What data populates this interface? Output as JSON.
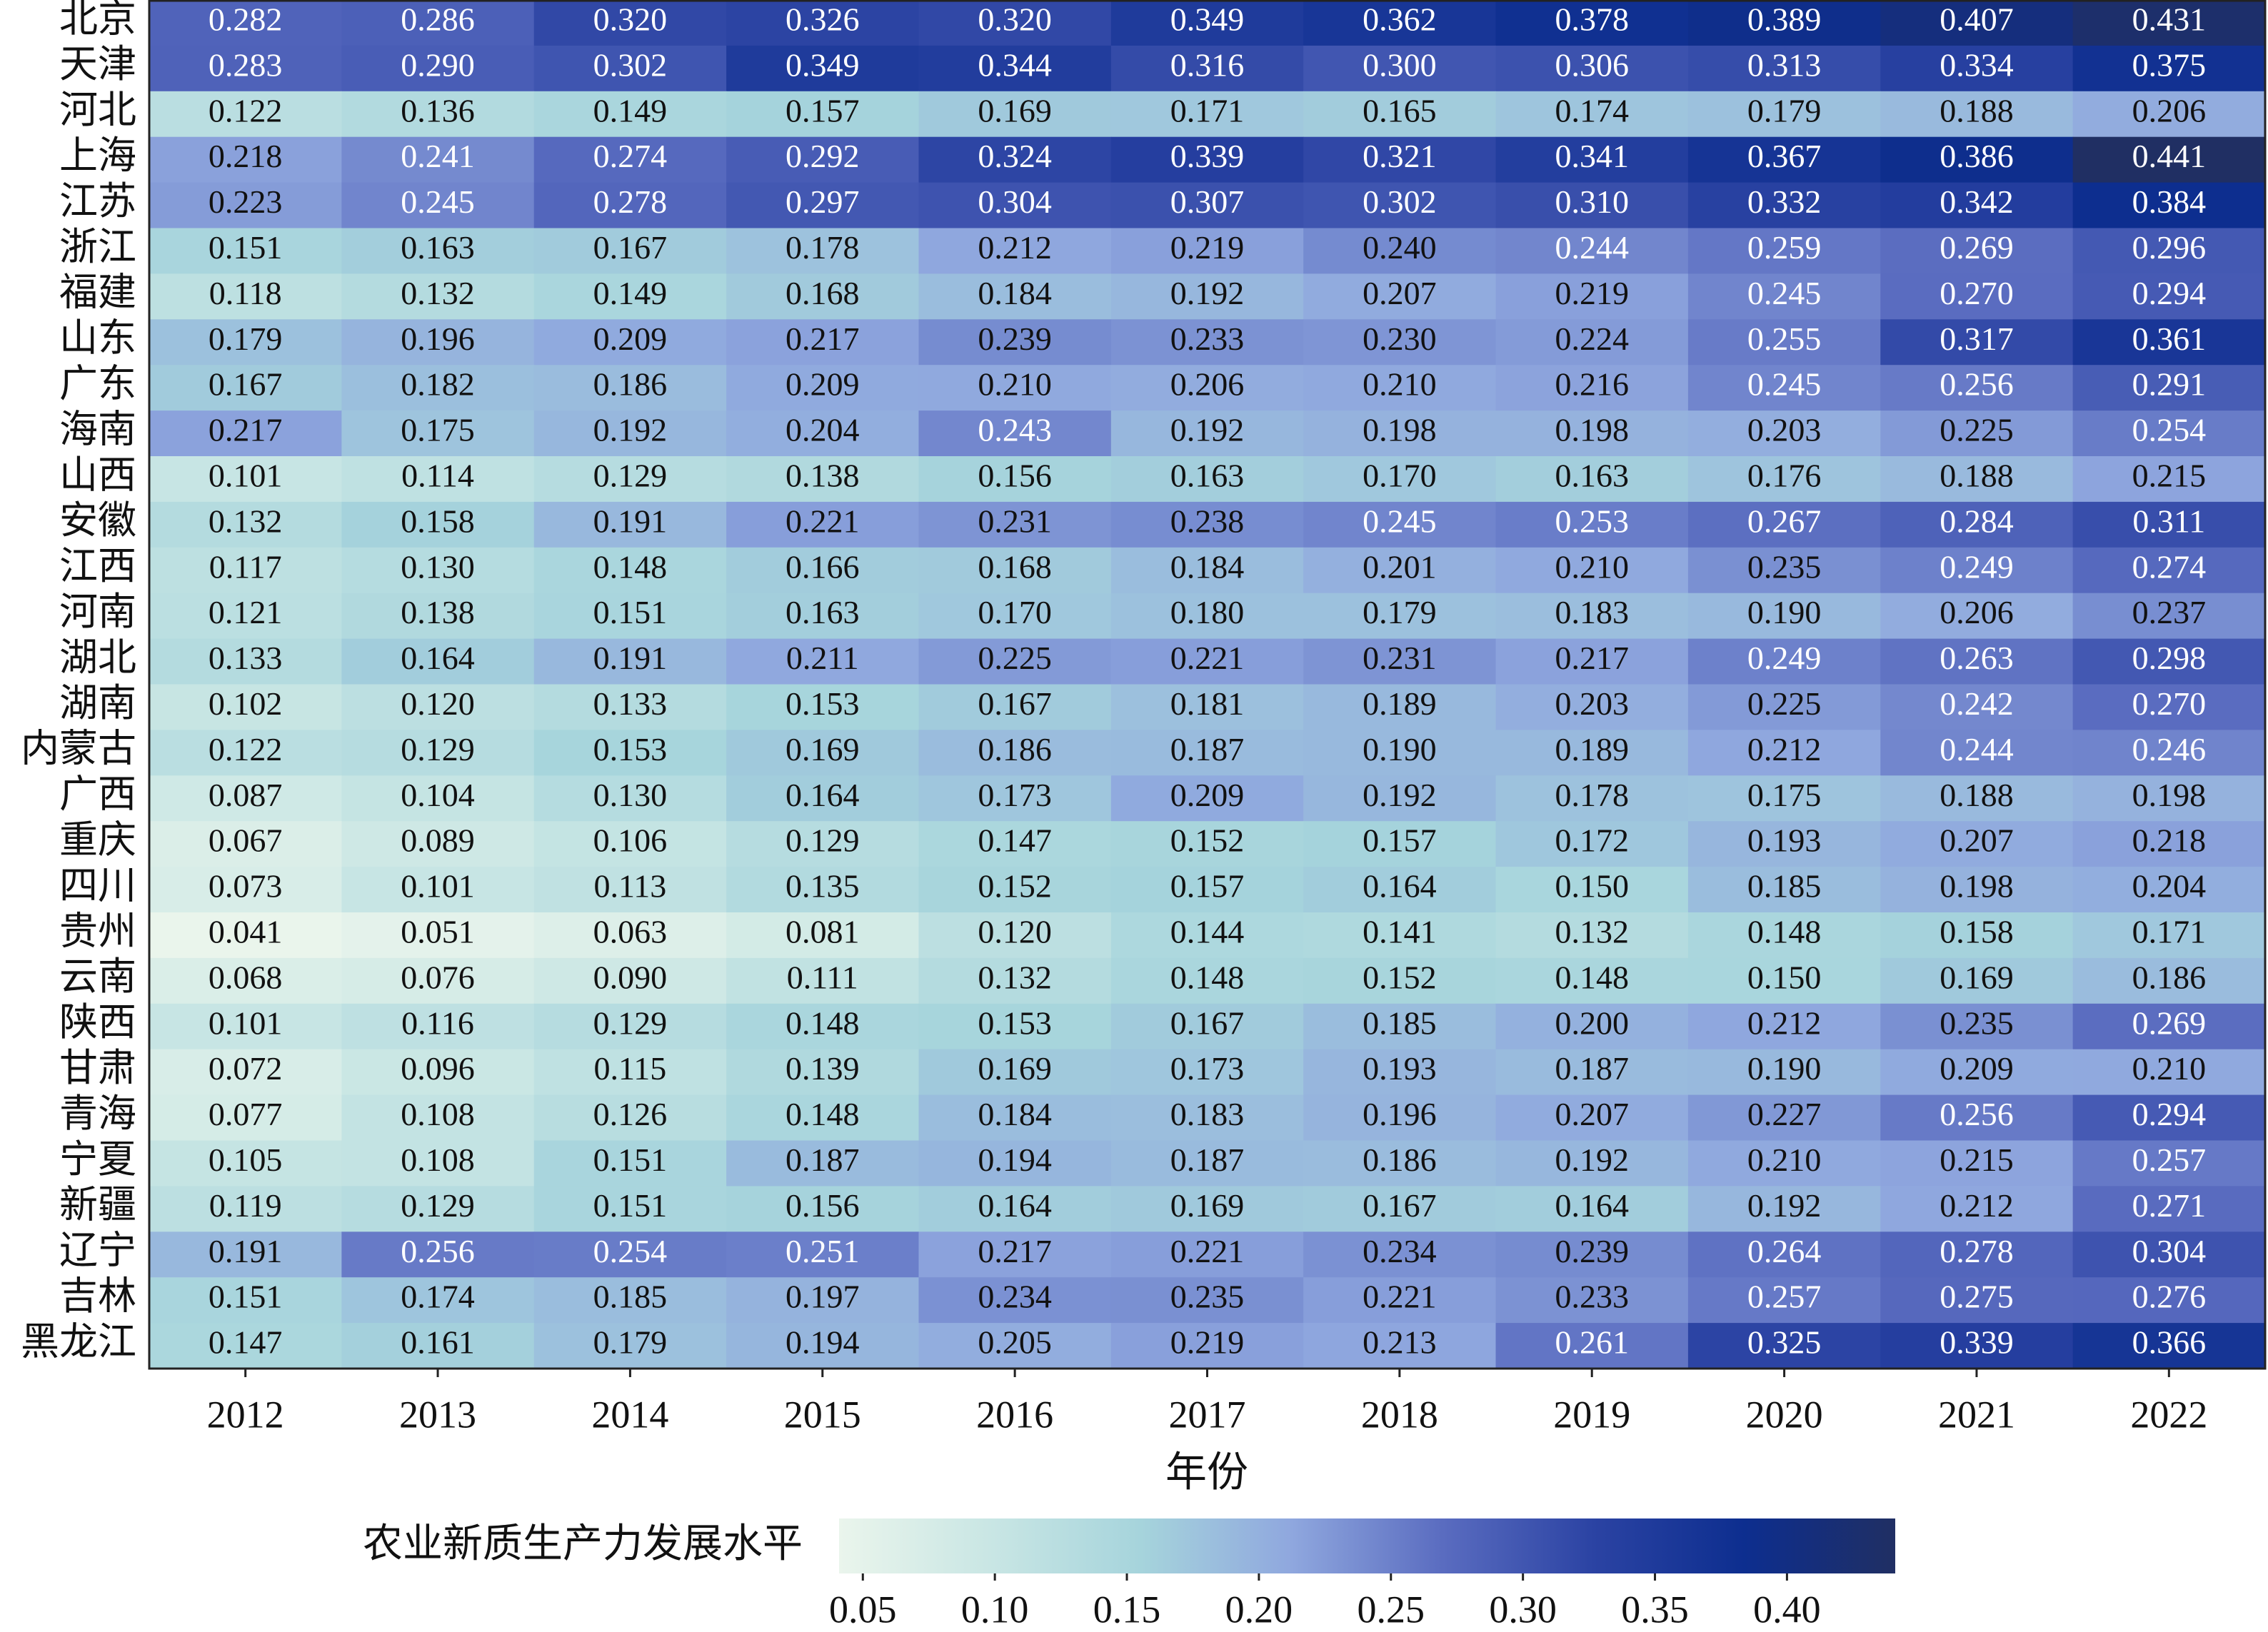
{
  "chart_data": {
    "type": "heatmap",
    "x_label": "年份",
    "colorbar_label": "农业新质生产力发展水平",
    "categories": [
      "2012",
      "2013",
      "2014",
      "2015",
      "2016",
      "2017",
      "2018",
      "2019",
      "2020",
      "2021",
      "2022"
    ],
    "colormap": [
      "#eaf5ec",
      "#c9e6e4",
      "#a6d4dc",
      "#8fa7de",
      "#5a6cc0",
      "#2b43a3",
      "#0d2e8f",
      "#202f63"
    ],
    "clim": [
      0.041,
      0.441
    ],
    "cticks": [
      0.05,
      0.1,
      0.15,
      0.2,
      0.25,
      0.3,
      0.35,
      0.4
    ],
    "cticks_labels": [
      "0.05",
      "0.10",
      "0.15",
      "0.20",
      "0.25",
      "0.30",
      "0.35",
      "0.40"
    ],
    "series": [
      {
        "name": "北京",
        "values": [
          0.282,
          0.286,
          0.32,
          0.326,
          0.32,
          0.349,
          0.362,
          0.378,
          0.389,
          0.407,
          0.431
        ],
        "value_labels": [
          "0.282",
          "0.286",
          "0.320",
          "0.326",
          "0.320",
          "0.349",
          "0.362",
          "0.378",
          "0.389",
          "0.407",
          "0.431"
        ]
      },
      {
        "name": "天津",
        "values": [
          0.283,
          0.29,
          0.302,
          0.349,
          0.344,
          0.316,
          0.3,
          0.306,
          0.313,
          0.334,
          0.375
        ],
        "value_labels": [
          "0.283",
          "0.290",
          "0.302",
          "0.349",
          "0.344",
          "0.316",
          "0.300",
          "0.306",
          "0.313",
          "0.334",
          "0.375"
        ]
      },
      {
        "name": "河北",
        "values": [
          0.122,
          0.136,
          0.149,
          0.157,
          0.169,
          0.171,
          0.165,
          0.174,
          0.179,
          0.188,
          0.206
        ],
        "value_labels": [
          "0.122",
          "0.136",
          "0.149",
          "0.157",
          "0.169",
          "0.171",
          "0.165",
          "0.174",
          "0.179",
          "0.188",
          "0.206"
        ]
      },
      {
        "name": "上海",
        "values": [
          0.218,
          0.241,
          0.274,
          0.292,
          0.324,
          0.339,
          0.321,
          0.341,
          0.367,
          0.386,
          0.441
        ],
        "value_labels": [
          "0.218",
          "0.241",
          "0.274",
          "0.292",
          "0.324",
          "0.339",
          "0.321",
          "0.341",
          "0.367",
          "0.386",
          "0.441"
        ]
      },
      {
        "name": "江苏",
        "values": [
          0.223,
          0.245,
          0.278,
          0.297,
          0.304,
          0.307,
          0.302,
          0.31,
          0.332,
          0.342,
          0.384
        ],
        "value_labels": [
          "0.223",
          "0.245",
          "0.278",
          "0.297",
          "0.304",
          "0.307",
          "0.302",
          "0.310",
          "0.332",
          "0.342",
          "0.384"
        ]
      },
      {
        "name": "浙江",
        "values": [
          0.151,
          0.163,
          0.167,
          0.178,
          0.212,
          0.219,
          0.24,
          0.244,
          0.259,
          0.269,
          0.296
        ],
        "value_labels": [
          "0.151",
          "0.163",
          "0.167",
          "0.178",
          "0.212",
          "0.219",
          "0.240",
          "0.244",
          "0.259",
          "0.269",
          "0.296"
        ]
      },
      {
        "name": "福建",
        "values": [
          0.118,
          0.132,
          0.149,
          0.168,
          0.184,
          0.192,
          0.207,
          0.219,
          0.245,
          0.27,
          0.294
        ],
        "value_labels": [
          "0.118",
          "0.132",
          "0.149",
          "0.168",
          "0.184",
          "0.192",
          "0.207",
          "0.219",
          "0.245",
          "0.270",
          "0.294"
        ]
      },
      {
        "name": "山东",
        "values": [
          0.179,
          0.196,
          0.209,
          0.217,
          0.239,
          0.233,
          0.23,
          0.224,
          0.255,
          0.317,
          0.361
        ],
        "value_labels": [
          "0.179",
          "0.196",
          "0.209",
          "0.217",
          "0.239",
          "0.233",
          "0.230",
          "0.224",
          "0.255",
          "0.317",
          "0.361"
        ]
      },
      {
        "name": "广东",
        "values": [
          0.167,
          0.182,
          0.186,
          0.209,
          0.21,
          0.206,
          0.21,
          0.216,
          0.245,
          0.256,
          0.291
        ],
        "value_labels": [
          "0.167",
          "0.182",
          "0.186",
          "0.209",
          "0.210",
          "0.206",
          "0.210",
          "0.216",
          "0.245",
          "0.256",
          "0.291"
        ]
      },
      {
        "name": "海南",
        "values": [
          0.217,
          0.175,
          0.192,
          0.204,
          0.243,
          0.192,
          0.198,
          0.198,
          0.203,
          0.225,
          0.254
        ],
        "value_labels": [
          "0.217",
          "0.175",
          "0.192",
          "0.204",
          "0.243",
          "0.192",
          "0.198",
          "0.198",
          "0.203",
          "0.225",
          "0.254"
        ]
      },
      {
        "name": "山西",
        "values": [
          0.101,
          0.114,
          0.129,
          0.138,
          0.156,
          0.163,
          0.17,
          0.163,
          0.176,
          0.188,
          0.215
        ],
        "value_labels": [
          "0.101",
          "0.114",
          "0.129",
          "0.138",
          "0.156",
          "0.163",
          "0.170",
          "0.163",
          "0.176",
          "0.188",
          "0.215"
        ]
      },
      {
        "name": "安徽",
        "values": [
          0.132,
          0.158,
          0.191,
          0.221,
          0.231,
          0.238,
          0.245,
          0.253,
          0.267,
          0.284,
          0.311
        ],
        "value_labels": [
          "0.132",
          "0.158",
          "0.191",
          "0.221",
          "0.231",
          "0.238",
          "0.245",
          "0.253",
          "0.267",
          "0.284",
          "0.311"
        ]
      },
      {
        "name": "江西",
        "values": [
          0.117,
          0.13,
          0.148,
          0.166,
          0.168,
          0.184,
          0.201,
          0.21,
          0.235,
          0.249,
          0.274
        ],
        "value_labels": [
          "0.117",
          "0.130",
          "0.148",
          "0.166",
          "0.168",
          "0.184",
          "0.201",
          "0.210",
          "0.235",
          "0.249",
          "0.274"
        ]
      },
      {
        "name": "河南",
        "values": [
          0.121,
          0.138,
          0.151,
          0.163,
          0.17,
          0.18,
          0.179,
          0.183,
          0.19,
          0.206,
          0.237
        ],
        "value_labels": [
          "0.121",
          "0.138",
          "0.151",
          "0.163",
          "0.170",
          "0.180",
          "0.179",
          "0.183",
          "0.190",
          "0.206",
          "0.237"
        ]
      },
      {
        "name": "湖北",
        "values": [
          0.133,
          0.164,
          0.191,
          0.211,
          0.225,
          0.221,
          0.231,
          0.217,
          0.249,
          0.263,
          0.298
        ],
        "value_labels": [
          "0.133",
          "0.164",
          "0.191",
          "0.211",
          "0.225",
          "0.221",
          "0.231",
          "0.217",
          "0.249",
          "0.263",
          "0.298"
        ]
      },
      {
        "name": "湖南",
        "values": [
          0.102,
          0.12,
          0.133,
          0.153,
          0.167,
          0.181,
          0.189,
          0.203,
          0.225,
          0.242,
          0.27
        ],
        "value_labels": [
          "0.102",
          "0.120",
          "0.133",
          "0.153",
          "0.167",
          "0.181",
          "0.189",
          "0.203",
          "0.225",
          "0.242",
          "0.270"
        ]
      },
      {
        "name": "内蒙古",
        "values": [
          0.122,
          0.129,
          0.153,
          0.169,
          0.186,
          0.187,
          0.19,
          0.189,
          0.212,
          0.244,
          0.246
        ],
        "value_labels": [
          "0.122",
          "0.129",
          "0.153",
          "0.169",
          "0.186",
          "0.187",
          "0.190",
          "0.189",
          "0.212",
          "0.244",
          "0.246"
        ]
      },
      {
        "name": "广西",
        "values": [
          0.087,
          0.104,
          0.13,
          0.164,
          0.173,
          0.209,
          0.192,
          0.178,
          0.175,
          0.188,
          0.198
        ],
        "value_labels": [
          "0.087",
          "0.104",
          "0.130",
          "0.164",
          "0.173",
          "0.209",
          "0.192",
          "0.178",
          "0.175",
          "0.188",
          "0.198"
        ]
      },
      {
        "name": "重庆",
        "values": [
          0.067,
          0.089,
          0.106,
          0.129,
          0.147,
          0.152,
          0.157,
          0.172,
          0.193,
          0.207,
          0.218
        ],
        "value_labels": [
          "0.067",
          "0.089",
          "0.106",
          "0.129",
          "0.147",
          "0.152",
          "0.157",
          "0.172",
          "0.193",
          "0.207",
          "0.218"
        ]
      },
      {
        "name": "四川",
        "values": [
          0.073,
          0.101,
          0.113,
          0.135,
          0.152,
          0.157,
          0.164,
          0.15,
          0.185,
          0.198,
          0.204
        ],
        "value_labels": [
          "0.073",
          "0.101",
          "0.113",
          "0.135",
          "0.152",
          "0.157",
          "0.164",
          "0.150",
          "0.185",
          "0.198",
          "0.204"
        ]
      },
      {
        "name": "贵州",
        "values": [
          0.041,
          0.051,
          0.063,
          0.081,
          0.12,
          0.144,
          0.141,
          0.132,
          0.148,
          0.158,
          0.171
        ],
        "value_labels": [
          "0.041",
          "0.051",
          "0.063",
          "0.081",
          "0.120",
          "0.144",
          "0.141",
          "0.132",
          "0.148",
          "0.158",
          "0.171"
        ]
      },
      {
        "name": "云南",
        "values": [
          0.068,
          0.076,
          0.09,
          0.111,
          0.132,
          0.148,
          0.152,
          0.148,
          0.15,
          0.169,
          0.186
        ],
        "value_labels": [
          "0.068",
          "0.076",
          "0.090",
          "0.111",
          "0.132",
          "0.148",
          "0.152",
          "0.148",
          "0.150",
          "0.169",
          "0.186"
        ]
      },
      {
        "name": "陕西",
        "values": [
          0.101,
          0.116,
          0.129,
          0.148,
          0.153,
          0.167,
          0.185,
          0.2,
          0.212,
          0.235,
          0.269
        ],
        "value_labels": [
          "0.101",
          "0.116",
          "0.129",
          "0.148",
          "0.153",
          "0.167",
          "0.185",
          "0.200",
          "0.212",
          "0.235",
          "0.269"
        ]
      },
      {
        "name": "甘肃",
        "values": [
          0.072,
          0.096,
          0.115,
          0.139,
          0.169,
          0.173,
          0.193,
          0.187,
          0.19,
          0.209,
          0.21
        ],
        "value_labels": [
          "0.072",
          "0.096",
          "0.115",
          "0.139",
          "0.169",
          "0.173",
          "0.193",
          "0.187",
          "0.190",
          "0.209",
          "0.210"
        ]
      },
      {
        "name": "青海",
        "values": [
          0.077,
          0.108,
          0.126,
          0.148,
          0.184,
          0.183,
          0.196,
          0.207,
          0.227,
          0.256,
          0.294
        ],
        "value_labels": [
          "0.077",
          "0.108",
          "0.126",
          "0.148",
          "0.184",
          "0.183",
          "0.196",
          "0.207",
          "0.227",
          "0.256",
          "0.294"
        ]
      },
      {
        "name": "宁夏",
        "values": [
          0.105,
          0.108,
          0.151,
          0.187,
          0.194,
          0.187,
          0.186,
          0.192,
          0.21,
          0.215,
          0.257
        ],
        "value_labels": [
          "0.105",
          "0.108",
          "0.151",
          "0.187",
          "0.194",
          "0.187",
          "0.186",
          "0.192",
          "0.210",
          "0.215",
          "0.257"
        ]
      },
      {
        "name": "新疆",
        "values": [
          0.119,
          0.129,
          0.151,
          0.156,
          0.164,
          0.169,
          0.167,
          0.164,
          0.192,
          0.212,
          0.271
        ],
        "value_labels": [
          "0.119",
          "0.129",
          "0.151",
          "0.156",
          "0.164",
          "0.169",
          "0.167",
          "0.164",
          "0.192",
          "0.212",
          "0.271"
        ]
      },
      {
        "name": "辽宁",
        "values": [
          0.191,
          0.256,
          0.254,
          0.251,
          0.217,
          0.221,
          0.234,
          0.239,
          0.264,
          0.278,
          0.304
        ],
        "value_labels": [
          "0.191",
          "0.256",
          "0.254",
          "0.251",
          "0.217",
          "0.221",
          "0.234",
          "0.239",
          "0.264",
          "0.278",
          "0.304"
        ]
      },
      {
        "name": "吉林",
        "values": [
          0.151,
          0.174,
          0.185,
          0.197,
          0.234,
          0.235,
          0.221,
          0.233,
          0.257,
          0.275,
          0.276
        ],
        "value_labels": [
          "0.151",
          "0.174",
          "0.185",
          "0.197",
          "0.234",
          "0.235",
          "0.221",
          "0.233",
          "0.257",
          "0.275",
          "0.276"
        ]
      },
      {
        "name": "黑龙江",
        "values": [
          0.147,
          0.161,
          0.179,
          0.194,
          0.205,
          0.219,
          0.213,
          0.261,
          0.325,
          0.339,
          0.366
        ],
        "value_labels": [
          "0.147",
          "0.161",
          "0.179",
          "0.194",
          "0.205",
          "0.219",
          "0.213",
          "0.261",
          "0.325",
          "0.339",
          "0.366"
        ]
      }
    ]
  }
}
